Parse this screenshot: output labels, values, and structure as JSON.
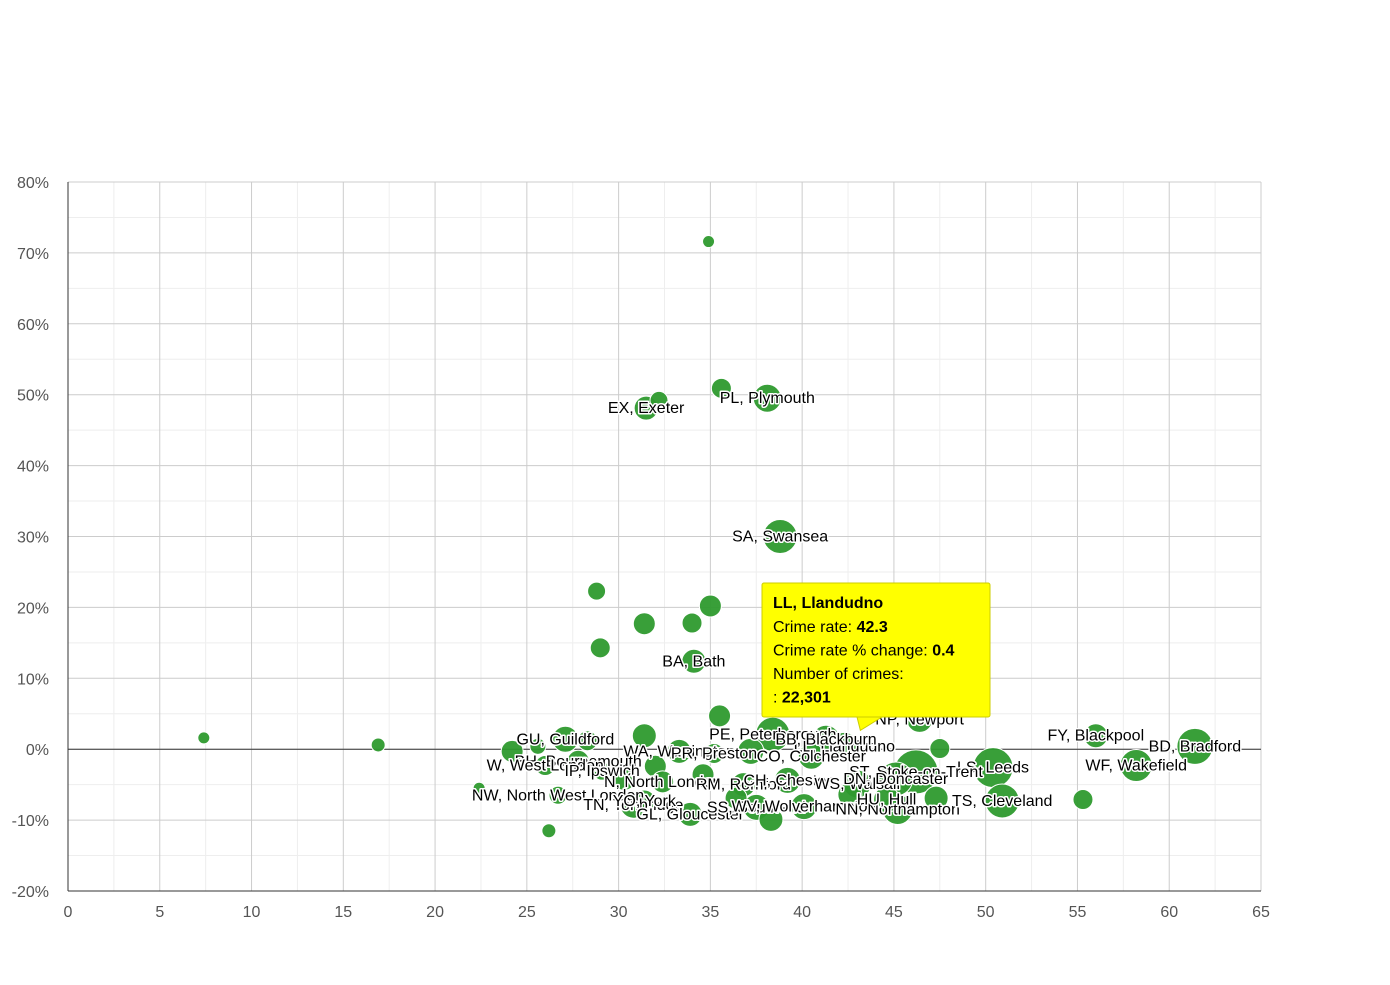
{
  "chart_data": {
    "type": "scatter",
    "title": "",
    "xlabel": "",
    "ylabel": "",
    "xlim": [
      0,
      65
    ],
    "ylim": [
      -20,
      80
    ],
    "x_ticks": [
      0,
      5,
      10,
      15,
      20,
      25,
      30,
      35,
      40,
      45,
      50,
      55,
      60,
      65
    ],
    "x_tick_labels": [
      "0",
      "5",
      "10",
      "15",
      "20",
      "25",
      "30",
      "35",
      "40",
      "45",
      "50",
      "55",
      "60",
      "65"
    ],
    "y_ticks": [
      -20,
      -10,
      0,
      10,
      20,
      30,
      40,
      50,
      60,
      70,
      80
    ],
    "y_tick_labels": [
      "-20%",
      "-10%",
      "0%",
      "10%",
      "20%",
      "30%",
      "40%",
      "50%",
      "60%",
      "70%",
      "80%"
    ],
    "grid": true,
    "legend": "none",
    "bubble_color": "#2e9a2e",
    "points": [
      {
        "x": 34.9,
        "y": 71.6,
        "size": 6
      },
      {
        "x": 35.6,
        "y": 50.9,
        "size": 10
      },
      {
        "x": 32.2,
        "y": 49.2,
        "size": 9
      },
      {
        "x": 31.5,
        "y": 48.1,
        "size": 12,
        "label": "EX, Exeter"
      },
      {
        "x": 38.1,
        "y": 49.5,
        "size": 14,
        "label": "PL, Plymouth"
      },
      {
        "x": 38.8,
        "y": 30.0,
        "size": 17,
        "label": "SA, Swansea"
      },
      {
        "x": 28.8,
        "y": 22.3,
        "size": 9
      },
      {
        "x": 35.0,
        "y": 20.2,
        "size": 11
      },
      {
        "x": 31.4,
        "y": 17.7,
        "size": 11
      },
      {
        "x": 34.0,
        "y": 17.8,
        "size": 10
      },
      {
        "x": 29.0,
        "y": 14.3,
        "size": 10
      },
      {
        "x": 34.1,
        "y": 12.4,
        "size": 12,
        "label": "BA, Bath"
      },
      {
        "x": 35.5,
        "y": 4.7,
        "size": 11
      },
      {
        "x": 46.4,
        "y": 4.2,
        "size": 13,
        "label": "NP, Newport"
      },
      {
        "x": 42.3,
        "y": 0.4,
        "size": 14,
        "label": "LL, Llandudno"
      },
      {
        "x": 38.4,
        "y": 2.1,
        "size": 17,
        "label": "PE, Peterborough"
      },
      {
        "x": 41.3,
        "y": 1.4,
        "size": 14,
        "label": "BB, Blackburn"
      },
      {
        "x": 7.4,
        "y": 1.6,
        "size": 6
      },
      {
        "x": 16.9,
        "y": 0.6,
        "size": 7
      },
      {
        "x": 27.1,
        "y": 1.4,
        "size": 13,
        "label": "GU, Guildford"
      },
      {
        "x": 28.3,
        "y": 1.2,
        "size": 10
      },
      {
        "x": 25.6,
        "y": 0.4,
        "size": 8
      },
      {
        "x": 24.2,
        "y": -0.3,
        "size": 11
      },
      {
        "x": 31.4,
        "y": 1.9,
        "size": 12
      },
      {
        "x": 47.5,
        "y": 0.1,
        "size": 10
      },
      {
        "x": 33.3,
        "y": -0.3,
        "size": 12,
        "label": "WA, Warrington"
      },
      {
        "x": 35.2,
        "y": -0.6,
        "size": 10,
        "label": "PR, Preston"
      },
      {
        "x": 37.2,
        "y": -0.3,
        "size": 13
      },
      {
        "x": 40.5,
        "y": -1.0,
        "size": 13,
        "label": "CO, Colchester"
      },
      {
        "x": 56.0,
        "y": 1.9,
        "size": 12,
        "label": "FY, Blackpool"
      },
      {
        "x": 61.4,
        "y": 0.4,
        "size": 18,
        "label": "BD, Bradford"
      },
      {
        "x": 58.2,
        "y": -2.3,
        "size": 16,
        "label": "WF, Wakefield"
      },
      {
        "x": 50.4,
        "y": -2.6,
        "size": 20,
        "label": "LS, Leeds"
      },
      {
        "x": 46.2,
        "y": -3.2,
        "size": 22,
        "label": "ST, Stoke-on-Trent"
      },
      {
        "x": 27.8,
        "y": -1.7,
        "size": 11,
        "label": "BH, Bournemouth"
      },
      {
        "x": 26.0,
        "y": -2.3,
        "size": 10,
        "label": "W, West London"
      },
      {
        "x": 29.1,
        "y": -3.1,
        "size": 9,
        "label": "IP, Ipswich"
      },
      {
        "x": 32.0,
        "y": -2.4,
        "size": 11
      },
      {
        "x": 22.4,
        "y": -5.5,
        "size": 6
      },
      {
        "x": 26.7,
        "y": -6.5,
        "size": 9,
        "label": "NW, North West London"
      },
      {
        "x": 30.3,
        "y": -4.1,
        "size": 12
      },
      {
        "x": 32.4,
        "y": -4.6,
        "size": 11,
        "label": "N, North London"
      },
      {
        "x": 36.8,
        "y": -5.0,
        "size": 12,
        "label": "RM, Romford"
      },
      {
        "x": 39.2,
        "y": -4.4,
        "size": 13,
        "label": "CH, Chester"
      },
      {
        "x": 43.0,
        "y": -4.9,
        "size": 14,
        "label": "WS, Walsall"
      },
      {
        "x": 45.1,
        "y": -4.2,
        "size": 17,
        "label": "DN, Doncaster"
      },
      {
        "x": 30.8,
        "y": -7.9,
        "size": 13,
        "label": "TN, Tonbridge"
      },
      {
        "x": 31.4,
        "y": -7.3,
        "size": 11,
        "label": "YO, York"
      },
      {
        "x": 33.9,
        "y": -9.2,
        "size": 12,
        "label": "GL, Gloucester"
      },
      {
        "x": 37.5,
        "y": -8.2,
        "size": 13,
        "label": "SS, Southend"
      },
      {
        "x": 38.3,
        "y": -9.9,
        "size": 12
      },
      {
        "x": 40.1,
        "y": -8.1,
        "size": 13,
        "label": "WV, Wolverhampton"
      },
      {
        "x": 45.2,
        "y": -8.5,
        "size": 15,
        "label": "NN, Northampton"
      },
      {
        "x": 44.6,
        "y": -7.1,
        "size": 13,
        "label": "HU, Hull"
      },
      {
        "x": 50.9,
        "y": -7.3,
        "size": 17,
        "label": "TS, Cleveland"
      },
      {
        "x": 55.3,
        "y": -7.1,
        "size": 10
      },
      {
        "x": 26.2,
        "y": -11.5,
        "size": 7
      },
      {
        "x": 42.6,
        "y": -6.4,
        "size": 12
      },
      {
        "x": 36.4,
        "y": -6.9,
        "size": 11
      },
      {
        "x": 34.6,
        "y": -3.6,
        "size": 11
      },
      {
        "x": 47.3,
        "y": -6.9,
        "size": 12
      }
    ],
    "tooltip": {
      "target": "LL, Llandudno",
      "title": "LL, Llandudno",
      "rows": [
        {
          "label": "Crime rate: ",
          "value": "42.3"
        },
        {
          "label": "Crime rate % change: ",
          "value": "0.4"
        },
        {
          "label": "Number of crimes:",
          "value": ""
        },
        {
          "label": ": ",
          "value": "22,301"
        }
      ],
      "background": "#ffff00",
      "border": "#cccc00"
    }
  }
}
